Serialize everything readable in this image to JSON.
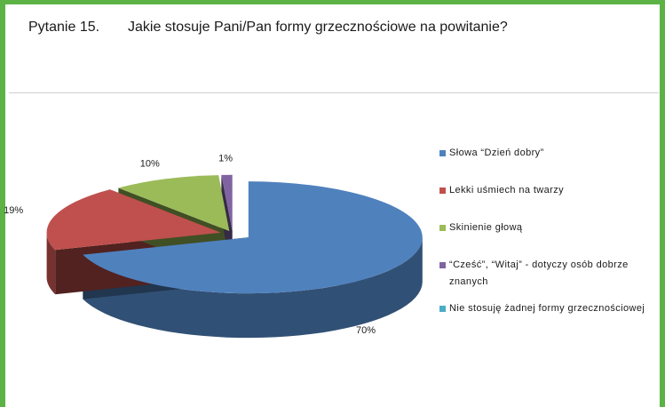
{
  "question": {
    "number": "Pytanie 15.",
    "text": "Jakie stosuje Pani/Pan formy grzecznościowe na powitanie?"
  },
  "colors": {
    "frame": "#5db246",
    "slice1": "#4f81bd",
    "slice2": "#c0504d",
    "slice3": "#9bbb59",
    "slice4": "#8064a2",
    "slice5": "#4bacc6"
  },
  "chart_data": {
    "type": "pie",
    "style": "3d-exploded",
    "legend_position": "right",
    "labels": [
      "Słowa “Dzień dobry”",
      "Lekki uśmiech na twarzy",
      "Skinienie głową",
      "“Cześć”, “Witaj” - dotyczy osób dobrze znanych",
      "Nie stosuję żadnej formy grzecznościowej"
    ],
    "values": [
      70,
      19,
      10,
      1,
      0
    ],
    "data_labels": [
      "70%",
      "19%",
      "10%",
      "1%",
      ""
    ]
  }
}
